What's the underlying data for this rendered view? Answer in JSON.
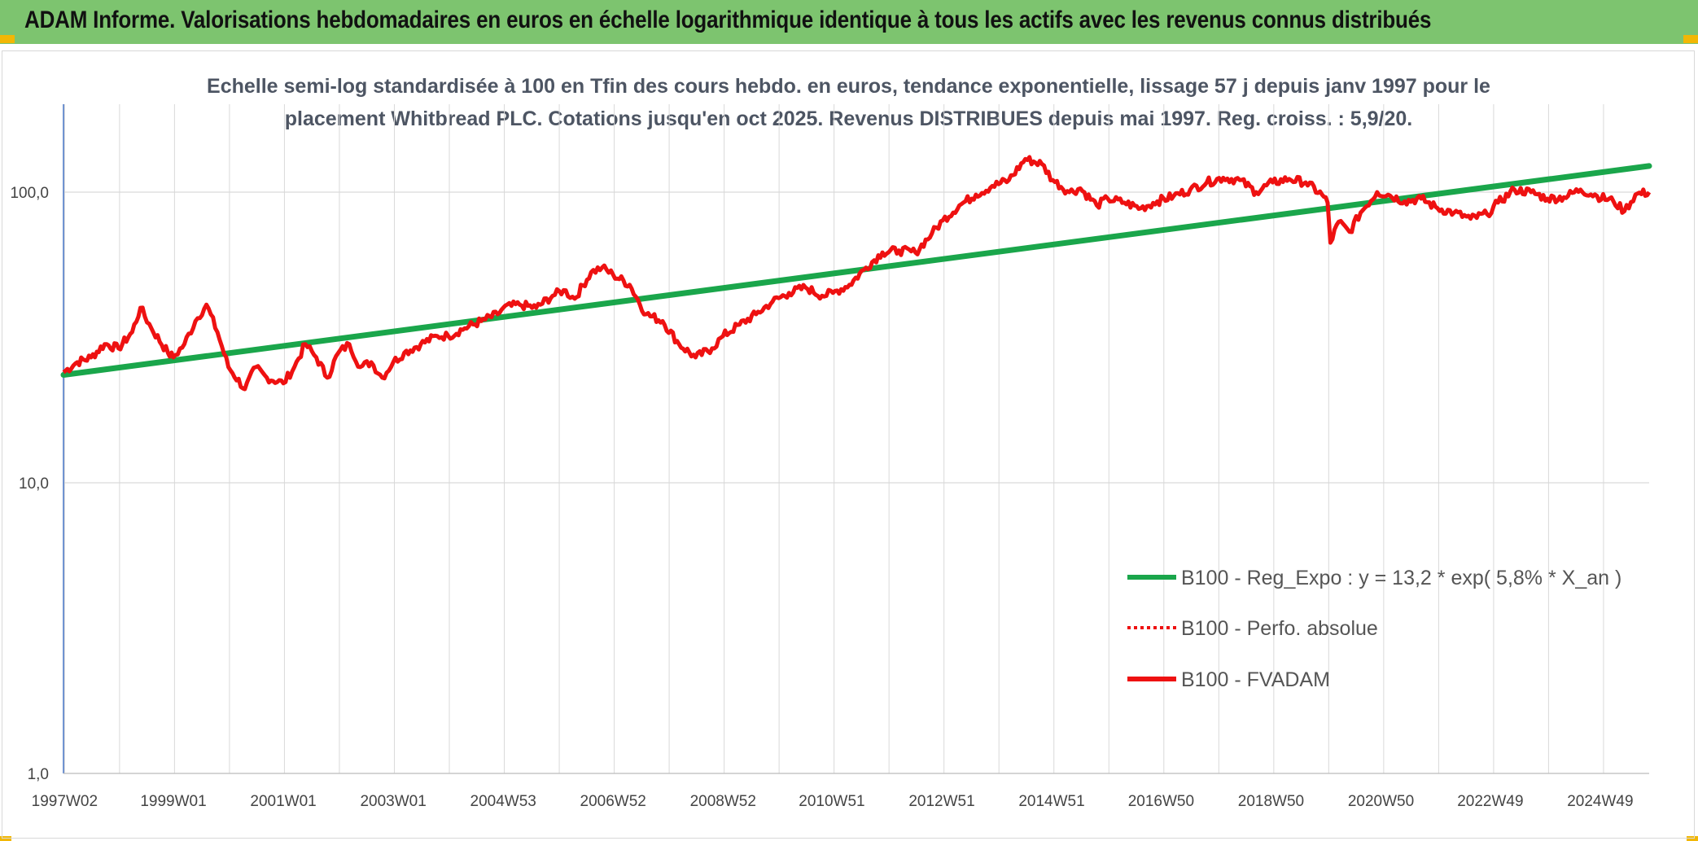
{
  "header": {
    "title": "ADAM Informe. Valorisations hebdomadaires en euros en échelle logarithmique identique à tous les actifs avec les revenus connus distribués"
  },
  "colors": {
    "header_bg": "#7dc46f",
    "corner_accent": "#f2b705",
    "trend_line": "#1aa64b",
    "fvadam_line": "#ee1111",
    "perfo_line": "#ee1111",
    "grid": "#d9d9d9"
  },
  "chart_data": {
    "type": "line",
    "title_line1": "Echelle semi-log standardisée à 100 en Tfin des cours hebdo. en euros, tendance exponentielle, lissage 57 j depuis janv 1997 pour le",
    "title_line2": "placement Whitbread PLC. Cotations jusqu'en oct 2025. Revenus DISTRIBUES depuis mai 1997. Reg. croiss. : 5,9/20.",
    "y_scale": "log",
    "ylim": [
      1,
      200
    ],
    "y_ticks": [
      {
        "value": 1,
        "label": "1,0"
      },
      {
        "value": 10,
        "label": "10,0"
      },
      {
        "value": 100,
        "label": "100,0"
      }
    ],
    "xlim": [
      1997.0,
      2025.85
    ],
    "x_tick_labels": [
      "1997W02",
      "1999W01",
      "2001W01",
      "2003W01",
      "2004W53",
      "2006W52",
      "2008W52",
      "2010W51",
      "2012W51",
      "2014W51",
      "2016W50",
      "2018W50",
      "2020W50",
      "2022W49",
      "2024W49"
    ],
    "x_tick_years": [
      1997.02,
      1999.0,
      2001.0,
      2003.0,
      2005.0,
      2007.0,
      2009.0,
      2010.98,
      2012.98,
      2014.98,
      2016.97,
      2018.97,
      2020.97,
      2022.96,
      2024.96
    ],
    "grid": true,
    "legend_position": "bottom-right",
    "series": [
      {
        "name": "B100 - Reg_Expo : y = 13,2 * exp( 5,8% *  X_an )",
        "style": "solid",
        "color": "#1aa64b",
        "x": [
          1997.0,
          2025.85
        ],
        "y": [
          23.5,
          123
        ]
      },
      {
        "name": "B100 - Perfo. absolue",
        "style": "dotted",
        "color": "#ee1111",
        "x": [],
        "y": []
      },
      {
        "name": "B100 - FVADAM",
        "style": "solid",
        "color": "#ee1111",
        "x": [
          1997.0,
          1997.25,
          1997.5,
          1997.75,
          1998.0,
          1998.25,
          1998.4,
          1998.6,
          1998.9,
          1999.0,
          1999.2,
          1999.4,
          1999.6,
          1999.8,
          2000.0,
          2000.3,
          2000.5,
          2000.7,
          2001.0,
          2001.2,
          2001.4,
          2001.6,
          2001.8,
          2002.0,
          2002.2,
          2002.4,
          2002.6,
          2002.8,
          2003.0,
          2003.2,
          2003.5,
          2003.8,
          2004.0,
          2004.3,
          2004.6,
          2004.9,
          2005.0,
          2005.3,
          2005.6,
          2005.9,
          2006.1,
          2006.3,
          2006.6,
          2006.8,
          2007.0,
          2007.3,
          2007.6,
          2007.9,
          2008.2,
          2008.5,
          2008.8,
          2009.0,
          2009.3,
          2009.6,
          2009.9,
          2010.2,
          2010.5,
          2010.8,
          2011.0,
          2011.3,
          2011.6,
          2011.9,
          2012.2,
          2012.5,
          2012.8,
          2013.0,
          2013.3,
          2013.6,
          2013.9,
          2014.2,
          2014.5,
          2014.8,
          2015.0,
          2015.3,
          2015.5,
          2015.8,
          2016.0,
          2016.3,
          2016.6,
          2016.9,
          2017.2,
          2017.5,
          2017.8,
          2018.1,
          2018.4,
          2018.7,
          2019.0,
          2019.3,
          2019.6,
          2019.9,
          2020.0,
          2020.05,
          2020.2,
          2020.4,
          2020.6,
          2020.9,
          2021.1,
          2021.4,
          2021.7,
          2022.0,
          2022.3,
          2022.6,
          2022.9,
          2023.1,
          2023.4,
          2023.7,
          2024.0,
          2024.3,
          2024.6,
          2024.9,
          2025.2,
          2025.4,
          2025.6,
          2025.85
        ],
        "y": [
          24,
          26,
          27,
          30,
          29,
          33,
          40,
          34,
          28,
          27,
          30,
          36,
          41,
          33,
          25,
          21,
          25,
          23,
          22,
          25,
          30,
          27,
          23,
          28,
          30,
          25,
          26,
          23,
          26,
          28,
          30,
          32,
          32,
          34,
          36,
          38,
          40,
          41,
          40,
          44,
          46,
          43,
          53,
          55,
          52,
          48,
          38,
          36,
          30,
          27,
          29,
          32,
          35,
          38,
          42,
          45,
          47,
          44,
          45,
          48,
          55,
          62,
          63,
          62,
          72,
          80,
          90,
          98,
          105,
          110,
          130,
          125,
          110,
          100,
          103,
          90,
          95,
          92,
          88,
          93,
          97,
          102,
          108,
          112,
          110,
          100,
          108,
          111,
          108,
          98,
          92,
          67,
          79,
          73,
          85,
          100,
          98,
          93,
          95,
          88,
          85,
          81,
          84,
          92,
          102,
          100,
          95,
          96,
          102,
          97,
          93,
          86,
          98,
          100
        ]
      }
    ]
  }
}
